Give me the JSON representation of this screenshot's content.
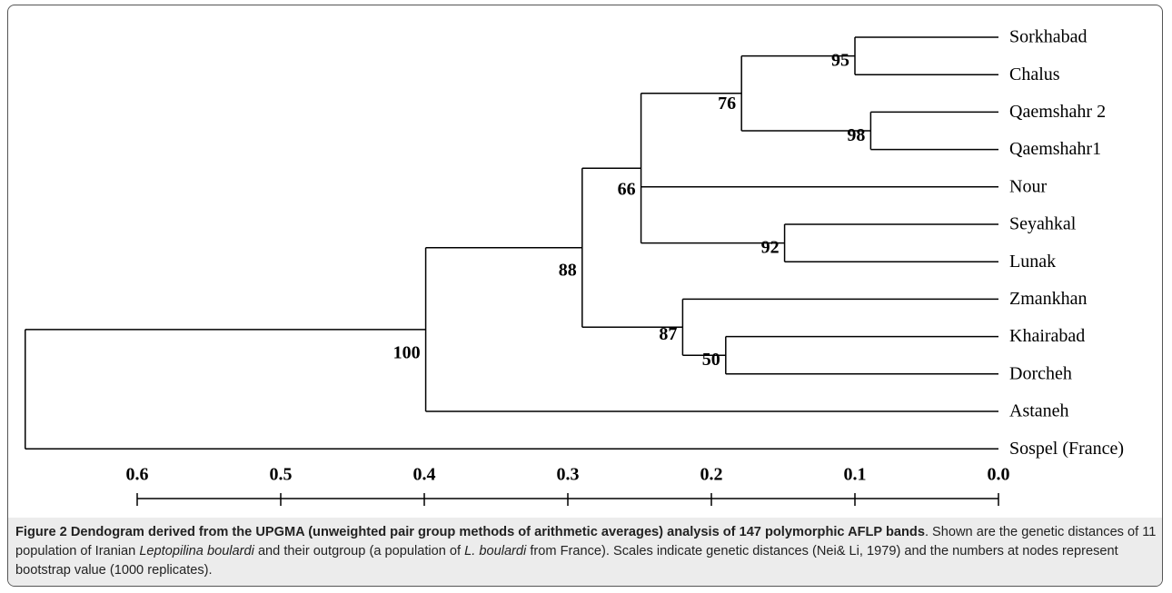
{
  "chart_data": {
    "type": "dendrogram",
    "xlim": [
      0.6,
      0
    ],
    "xticks": [
      0.6,
      0.5,
      0.4,
      0.3,
      0.2,
      0.1,
      {
        "value": 0,
        "label": "0.0"
      }
    ],
    "tree": {
      "height": 0.678,
      "children": [
        {
          "height": 0.399,
          "bootstrap": 100,
          "children": [
            {
              "height": 0.29,
              "bootstrap": 88,
              "children": [
                {
                  "height": 0.249,
                  "bootstrap": 66,
                  "children": [
                    {
                      "height": 0.179,
                      "bootstrap": 76,
                      "children": [
                        {
                          "height": 0.1,
                          "bootstrap": 95,
                          "children": [
                            {
                              "name": "Sorkhabad"
                            },
                            {
                              "name": "Chalus"
                            }
                          ]
                        },
                        {
                          "height": 0.089,
                          "bootstrap": 98,
                          "children": [
                            {
                              "name": "Qaemshahr 2"
                            },
                            {
                              "name": "Qaemshahr1"
                            }
                          ]
                        }
                      ]
                    },
                    {
                      "name": "Nour"
                    },
                    {
                      "height": 0.149,
                      "bootstrap": 92,
                      "children": [
                        {
                          "name": "Seyahkal"
                        },
                        {
                          "name": "Lunak"
                        }
                      ]
                    }
                  ]
                },
                {
                  "height": 0.22,
                  "bootstrap": 87,
                  "children": [
                    {
                      "name": "Zmankhan"
                    },
                    {
                      "height": 0.19,
                      "bootstrap": 50,
                      "children": [
                        {
                          "name": "Khairabad"
                        },
                        {
                          "name": "Dorcheh"
                        }
                      ]
                    }
                  ]
                }
              ]
            },
            {
              "name": "Astaneh"
            }
          ]
        },
        {
          "name": "Sospel (France)"
        }
      ]
    }
  },
  "caption": {
    "label": "Figure 2 Dendogram derived from the UPGMA (unweighted pair group methods of arithmetic averages) analysis of 147 polymorphic AFLP bands",
    "text1": ". Shown are the genetic distances of 11 population of Iranian ",
    "italic1": "Leptopilina boulardi",
    "text2": " and their outgroup (a population of ",
    "italic2": "L. boulardi",
    "text3": " from France). Scales indicate genetic distances (Nei& Li, 1979) and the numbers at nodes represent bootstrap value (1000 replicates)."
  }
}
